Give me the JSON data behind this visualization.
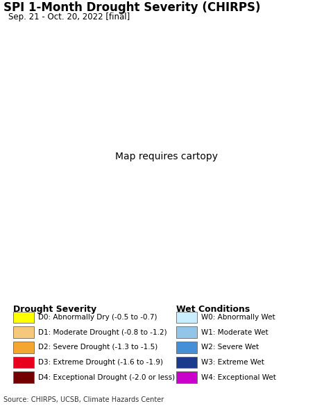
{
  "title": "SPI 1-Month Drought Severity (CHIRPS)",
  "subtitle": "Sep. 21 - Oct. 20, 2022 [final]",
  "source": "Source: CHIRPS, UCSB, Climate Hazards Center",
  "background_color": "#ffffff",
  "map_water_color": "#aae8f5",
  "map_land_color": "#dcdcdc",
  "map_bg_color": "#e8e8e8",
  "drought_legend": [
    {
      "code": "D0",
      "label": "D0: Abnormally Dry (-0.5 to -0.7)",
      "color": "#ffff00"
    },
    {
      "code": "D1",
      "label": "D1: Moderate Drought (-0.8 to -1.2)",
      "color": "#f5c87c"
    },
    {
      "code": "D2",
      "label": "D2: Severe Drought (-1.3 to -1.5)",
      "color": "#f5a631"
    },
    {
      "code": "D3",
      "label": "D3: Extreme Drought (-1.6 to -1.9)",
      "color": "#e8001c"
    },
    {
      "code": "D4",
      "label": "D4: Exceptional Drought (-2.0 or less)",
      "color": "#730000"
    }
  ],
  "wet_legend": [
    {
      "code": "W0",
      "label": "W0: Abnormally Wet",
      "color": "#c8eeff"
    },
    {
      "code": "W1",
      "label": "W1: Moderate Wet",
      "color": "#92c5e8"
    },
    {
      "code": "W2",
      "label": "W2: Severe Wet",
      "color": "#4490d8"
    },
    {
      "code": "W3",
      "label": "W3: Extreme Wet",
      "color": "#1a3a8c"
    },
    {
      "code": "W4",
      "label": "W4: Exceptional Wet",
      "color": "#cc00cc"
    }
  ],
  "legend_header_drought": "Drought Severity",
  "legend_header_wet": "Wet Conditions",
  "title_fontsize": 12,
  "subtitle_fontsize": 8.5,
  "source_fontsize": 7,
  "legend_fontsize": 7.5,
  "legend_header_fontsize": 9,
  "lon_min": 59.5,
  "lon_max": 105.0,
  "lat_min": 4.0,
  "lat_max": 42.0
}
